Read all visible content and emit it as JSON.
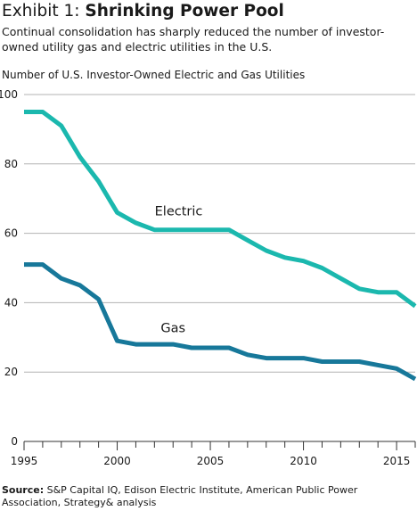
{
  "title": {
    "prefix": "Exhibit 1: ",
    "main": "Shrinking Power Pool"
  },
  "subtitle": "Continual consolidation has sharply reduced the number of investor-owned utility gas and electric utilities in the U.S.",
  "source": {
    "label": "Source:",
    "text": " S&P Capital IQ, Edison Electric Institute, American Public Power Association, Strategy& analysis"
  },
  "colors": {
    "electric": "#1bb8ae",
    "gas": "#17789a",
    "grid": "#b3b3b3",
    "axis": "#333333"
  },
  "chart_data": {
    "type": "line",
    "title": "",
    "ylabel": "Number of U.S. Investor-Owned Electric and Gas Utilities",
    "xlabel": "",
    "xlim": [
      1995,
      2016
    ],
    "ylim": [
      0,
      100
    ],
    "grid": true,
    "xticks": [
      1995,
      2000,
      2005,
      2010,
      2015
    ],
    "yticks": [
      0,
      20,
      40,
      60,
      80,
      100
    ],
    "x": [
      1995,
      1996,
      1997,
      1998,
      1999,
      2000,
      2001,
      2002,
      2003,
      2004,
      2005,
      2006,
      2007,
      2008,
      2009,
      2010,
      2011,
      2012,
      2013,
      2014,
      2015,
      2016
    ],
    "series": [
      {
        "name": "Electric",
        "values": [
          95,
          95,
          91,
          82,
          75,
          66,
          63,
          61,
          61,
          61,
          61,
          61,
          58,
          55,
          53,
          52,
          50,
          47,
          44,
          43,
          43,
          39
        ]
      },
      {
        "name": "Gas",
        "values": [
          51,
          51,
          47,
          45,
          41,
          29,
          28,
          28,
          28,
          27,
          27,
          27,
          25,
          24,
          24,
          24,
          23,
          23,
          23,
          22,
          21,
          18
        ]
      }
    ]
  }
}
